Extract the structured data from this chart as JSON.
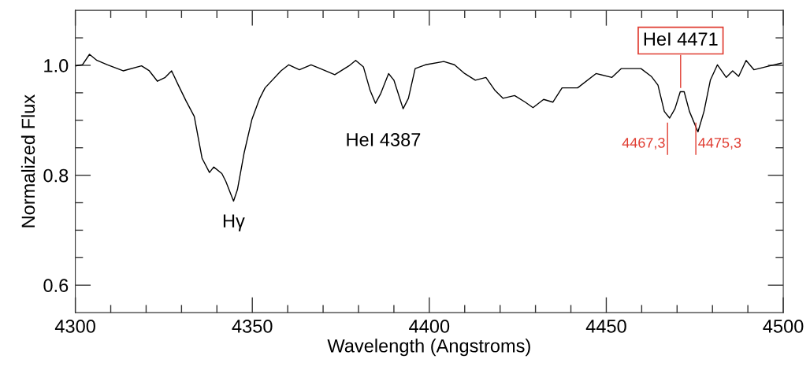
{
  "chart_data": {
    "type": "line",
    "xlabel": "Wavelength (Angstroms)",
    "ylabel": "Normalized Flux",
    "xlim": [
      4300,
      4500
    ],
    "ylim": [
      0.55,
      1.1
    ],
    "xticks": [
      4300,
      {
        "value": 4310,
        "label": null
      },
      {
        "value": 4320,
        "label": null
      },
      {
        "value": 4330,
        "label": null
      },
      {
        "value": 4340,
        "label": null
      },
      4350,
      {
        "value": 4360,
        "label": null
      },
      {
        "value": 4370,
        "label": null
      },
      {
        "value": 4380,
        "label": null
      },
      {
        "value": 4390,
        "label": null
      },
      4400,
      {
        "value": 4410,
        "label": null
      },
      {
        "value": 4420,
        "label": null
      },
      {
        "value": 4430,
        "label": null
      },
      {
        "value": 4440,
        "label": null
      },
      4450,
      {
        "value": 4460,
        "label": null
      },
      {
        "value": 4470,
        "label": null
      },
      {
        "value": 4480,
        "label": null
      },
      {
        "value": 4490,
        "label": null
      },
      4500
    ],
    "yticks": [
      {
        "value": 0.6,
        "label": "0.6"
      },
      {
        "value": 0.65,
        "label": null
      },
      {
        "value": 0.7,
        "label": null
      },
      {
        "value": 0.75,
        "label": null
      },
      {
        "value": 0.8,
        "label": "0.8"
      },
      {
        "value": 0.85,
        "label": null
      },
      {
        "value": 0.9,
        "label": null
      },
      {
        "value": 0.95,
        "label": null
      },
      {
        "value": 1.0,
        "label": "1.0"
      },
      {
        "value": 1.05,
        "label": null
      }
    ],
    "grid": false,
    "legend": false,
    "marker": "none",
    "line_style": "solid",
    "series": [
      {
        "color": "#000000",
        "x": [
          4300.1,
          4302,
          4304,
          4306.1,
          4309.1,
          4313.5,
          4318.7,
          4320.9,
          4323.2,
          4325.4,
          4327.2,
          4329.1,
          4331.3,
          4333.6,
          4335.8,
          4337.9,
          4339.1,
          4341.4,
          4342.5,
          4344.7,
          4345.8,
          4347.7,
          4349.9,
          4352.1,
          4353.6,
          4358.1,
          4360.3,
          4363.3,
          4366.6,
          4369.2,
          4373.3,
          4377.3,
          4379.2,
          4381.4,
          4383.3,
          4384.8,
          4386.3,
          4388.5,
          4390,
          4392.6,
          4394.1,
          4396,
          4398.9,
          4404.1,
          4407.1,
          4410,
          4413,
          4416,
          4418.6,
          4420.8,
          4424.1,
          4427.1,
          4429.3,
          4432.3,
          4434.9,
          4437.5,
          4441.9,
          4447.1,
          4451.6,
          4454.2,
          4459.8,
          4462.7,
          4464.6,
          4466.4,
          4467.9,
          4469.4,
          4470.9,
          4472,
          4473.5,
          4475.9,
          4477.6,
          4479.4,
          4481.4,
          4483.9,
          4485.7,
          4487.4,
          4489.5,
          4491.7,
          4496.2,
          4499.5
        ],
        "values": [
          0.999,
          1.001,
          1.02,
          1.009,
          1.001,
          0.99,
          0.999,
          0.99,
          0.971,
          0.978,
          0.99,
          0.964,
          0.935,
          0.907,
          0.831,
          0.805,
          0.815,
          0.803,
          0.789,
          0.753,
          0.774,
          0.841,
          0.902,
          0.94,
          0.959,
          0.99,
          1.001,
          0.992,
          1.001,
          0.994,
          0.983,
          0.999,
          1.009,
          0.997,
          0.954,
          0.931,
          0.949,
          0.985,
          0.973,
          0.921,
          0.94,
          0.994,
          1.001,
          1.007,
          1.001,
          0.985,
          0.973,
          0.978,
          0.954,
          0.94,
          0.945,
          0.933,
          0.923,
          0.938,
          0.933,
          0.959,
          0.959,
          0.985,
          0.978,
          0.994,
          0.994,
          0.98,
          0.964,
          0.916,
          0.904,
          0.921,
          0.952,
          0.952,
          0.916,
          0.879,
          0.916,
          0.973,
          1.001,
          0.978,
          0.99,
          0.98,
          1.009,
          0.992,
          0.999,
          1.004
        ]
      }
    ],
    "annotations": [
      "Hγ",
      "HeI 4387",
      "HeI 4471",
      "4467,3",
      "4475,3"
    ]
  }
}
